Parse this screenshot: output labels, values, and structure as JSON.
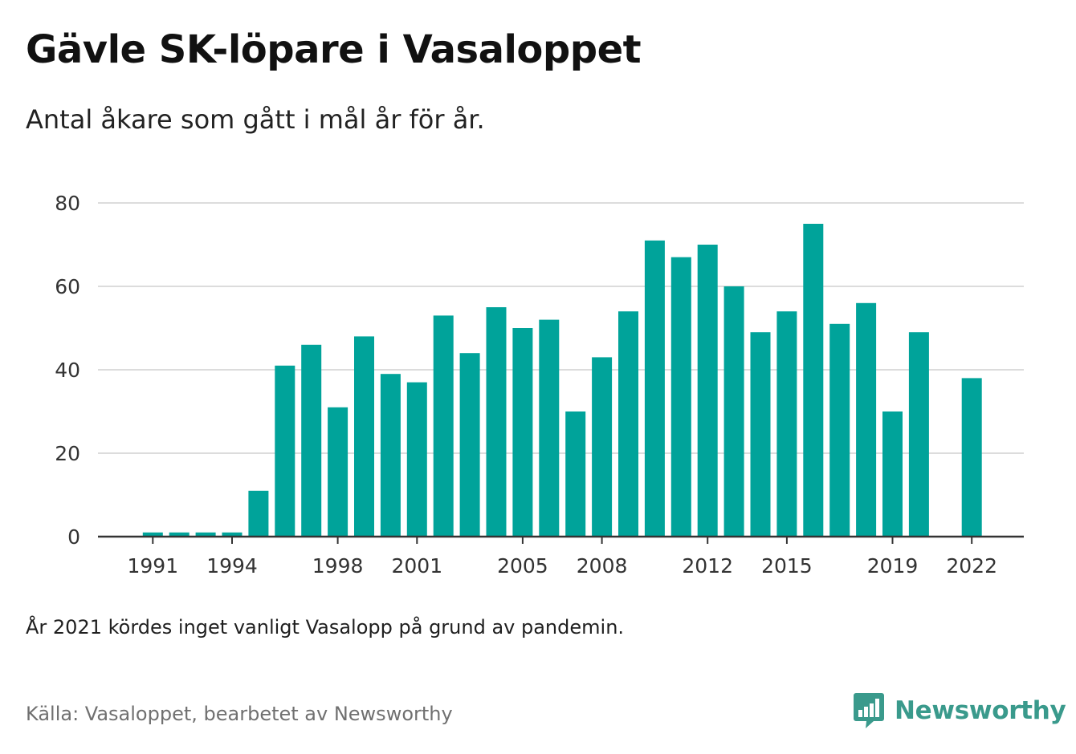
{
  "header": {
    "title": "Gävle SK-löpare i Vasaloppet",
    "subtitle": "Antal åkare som gått i mål år för år."
  },
  "footer": {
    "note": "År 2021 kördes inget vanligt Vasalopp på grund av pandemin.",
    "source": "Källa: Vasaloppet, bearbetet av Newsworthy",
    "brand": "Newsworthy",
    "brand_icon": "bar-chart-speech-bubble-icon",
    "brand_color": "#3a9a8c"
  },
  "chart_data": {
    "type": "bar",
    "bar_color": "#00a39a",
    "grid": true,
    "ylim": [
      0,
      80
    ],
    "yticks": [
      0,
      20,
      40,
      60,
      80
    ],
    "xticks": [
      1991,
      1994,
      1998,
      2001,
      2005,
      2008,
      2012,
      2015,
      2019,
      2022
    ],
    "categories": [
      1989,
      1990,
      1991,
      1992,
      1993,
      1994,
      1995,
      1996,
      1997,
      1998,
      1999,
      2000,
      2001,
      2002,
      2003,
      2004,
      2005,
      2006,
      2007,
      2008,
      2009,
      2010,
      2011,
      2012,
      2013,
      2014,
      2015,
      2016,
      2017,
      2018,
      2019,
      2020,
      2021,
      2022
    ],
    "values": [
      0,
      0,
      1,
      1,
      1,
      1,
      11,
      41,
      46,
      31,
      48,
      39,
      37,
      53,
      44,
      55,
      50,
      52,
      30,
      43,
      54,
      71,
      67,
      70,
      60,
      49,
      54,
      75,
      51,
      56,
      30,
      49,
      null,
      38
    ]
  }
}
